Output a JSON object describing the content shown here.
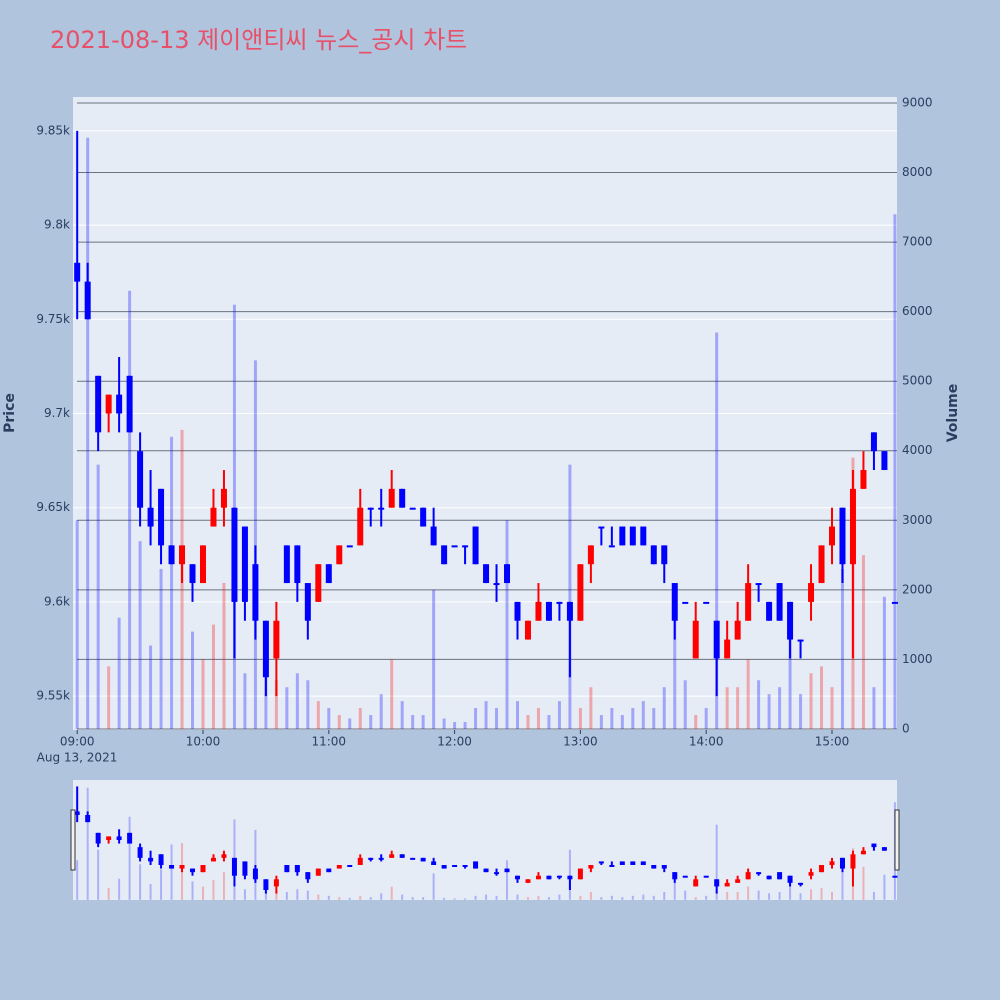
{
  "chart_data": {
    "type": "candlestick",
    "title": "2021-08-13 제이앤티씨 뉴스_공시 차트",
    "y_label": "Price",
    "y2_label": "Volume",
    "x_date_label": "Aug 13, 2021",
    "increasing_color": "#ff0000",
    "decreasing_color": "#0000ff",
    "grid": true,
    "rangeslider": true,
    "xlim": [
      "08:58",
      "15:31"
    ],
    "xticks": [
      "09:00",
      "10:00",
      "11:00",
      "12:00",
      "13:00",
      "14:00",
      "15:00"
    ],
    "ylim": [
      9532,
      9868
    ],
    "yticks": [
      {
        "value": 9550,
        "label": "9.55k"
      },
      {
        "value": 9600,
        "label": "9.6k"
      },
      {
        "value": 9650,
        "label": "9.65k"
      },
      {
        "value": 9700,
        "label": "9.7k"
      },
      {
        "value": 9750,
        "label": "9.75k"
      },
      {
        "value": 9800,
        "label": "9.8k"
      },
      {
        "value": 9850,
        "label": "9.85k"
      }
    ],
    "y2lim": [
      -15,
      9086
    ],
    "y2ticks": [
      0,
      1000,
      2000,
      3000,
      4000,
      5000,
      6000,
      7000,
      8000,
      9000
    ],
    "x": [
      "09:00",
      "09:05",
      "09:10",
      "09:15",
      "09:20",
      "09:25",
      "09:30",
      "09:35",
      "09:40",
      "09:45",
      "09:50",
      "09:55",
      "10:00",
      "10:05",
      "10:10",
      "10:15",
      "10:20",
      "10:25",
      "10:30",
      "10:35",
      "10:40",
      "10:45",
      "10:50",
      "10:55",
      "11:00",
      "11:05",
      "11:10",
      "11:15",
      "11:20",
      "11:25",
      "11:30",
      "11:35",
      "11:40",
      "11:45",
      "11:50",
      "11:55",
      "12:00",
      "12:05",
      "12:10",
      "12:15",
      "12:20",
      "12:25",
      "12:30",
      "12:35",
      "12:40",
      "12:45",
      "12:50",
      "12:55",
      "13:00",
      "13:05",
      "13:10",
      "13:15",
      "13:20",
      "13:25",
      "13:30",
      "13:35",
      "13:40",
      "13:45",
      "13:50",
      "13:55",
      "14:00",
      "14:05",
      "14:10",
      "14:15",
      "14:20",
      "14:25",
      "14:30",
      "14:35",
      "14:40",
      "14:45",
      "14:50",
      "14:55",
      "15:00",
      "15:05",
      "15:10",
      "15:15",
      "15:20",
      "15:25",
      "15:30"
    ],
    "open": [
      9780,
      9770,
      9720,
      9700,
      9710,
      9720,
      9680,
      9650,
      9660,
      9630,
      9620,
      9620,
      9610,
      9640,
      9650,
      9650,
      9640,
      9620,
      9590,
      9570,
      9630,
      9630,
      9610,
      9600,
      9620,
      9620,
      9630,
      9630,
      9650,
      9650,
      9650,
      9660,
      9650,
      9650,
      9640,
      9630,
      9630,
      9630,
      9640,
      9620,
      9610,
      9620,
      9600,
      9580,
      9590,
      9600,
      9600,
      9600,
      9590,
      9620,
      9640,
      9630,
      9640,
      9640,
      9640,
      9630,
      9630,
      9610,
      9600,
      9570,
      9600,
      9590,
      9570,
      9580,
      9590,
      9610,
      9600,
      9610,
      9600,
      9580,
      9600,
      9610,
      9630,
      9650,
      9620,
      9660,
      9690,
      9680,
      9600
    ],
    "high": [
      9850,
      9780,
      9720,
      9710,
      9730,
      9720,
      9690,
      9670,
      9660,
      9630,
      9630,
      9620,
      9630,
      9660,
      9670,
      9650,
      9640,
      9630,
      9590,
      9600,
      9630,
      9630,
      9610,
      9620,
      9620,
      9630,
      9630,
      9660,
      9650,
      9660,
      9670,
      9660,
      9650,
      9650,
      9650,
      9630,
      9630,
      9630,
      9640,
      9620,
      9620,
      9620,
      9600,
      9590,
      9610,
      9600,
      9600,
      9600,
      9620,
      9630,
      9640,
      9640,
      9640,
      9640,
      9640,
      9630,
      9630,
      9610,
      9600,
      9600,
      9600,
      9590,
      9590,
      9600,
      9620,
      9610,
      9600,
      9610,
      9600,
      9580,
      9620,
      9630,
      9650,
      9650,
      9670,
      9680,
      9690,
      9680,
      9600
    ],
    "low": [
      9750,
      9750,
      9680,
      9690,
      9690,
      9690,
      9640,
      9630,
      9620,
      9620,
      9610,
      9600,
      9610,
      9640,
      9640,
      9570,
      9590,
      9580,
      9550,
      9550,
      9610,
      9600,
      9580,
      9600,
      9610,
      9620,
      9630,
      9630,
      9640,
      9640,
      9650,
      9650,
      9650,
      9640,
      9630,
      9620,
      9630,
      9620,
      9620,
      9610,
      9600,
      9610,
      9580,
      9580,
      9590,
      9590,
      9590,
      9560,
      9590,
      9610,
      9630,
      9630,
      9630,
      9630,
      9630,
      9620,
      9610,
      9580,
      9600,
      9570,
      9600,
      9550,
      9570,
      9580,
      9590,
      9600,
      9590,
      9590,
      9570,
      9570,
      9590,
      9610,
      9620,
      9610,
      9570,
      9660,
      9670,
      9670,
      9600
    ],
    "close": [
      9770,
      9750,
      9690,
      9710,
      9700,
      9690,
      9650,
      9640,
      9630,
      9620,
      9630,
      9610,
      9630,
      9650,
      9660,
      9600,
      9600,
      9590,
      9560,
      9590,
      9610,
      9610,
      9590,
      9620,
      9610,
      9630,
      9630,
      9650,
      9650,
      9650,
      9660,
      9650,
      9650,
      9640,
      9630,
      9620,
      9630,
      9630,
      9620,
      9610,
      9610,
      9610,
      9590,
      9590,
      9600,
      9590,
      9600,
      9590,
      9620,
      9630,
      9640,
      9630,
      9630,
      9630,
      9630,
      9620,
      9620,
      9590,
      9600,
      9590,
      9600,
      9570,
      9580,
      9590,
      9610,
      9610,
      9590,
      9590,
      9580,
      9580,
      9610,
      9630,
      9640,
      9620,
      9660,
      9670,
      9680,
      9670,
      9600
    ],
    "volume": [
      3000,
      8500,
      3800,
      900,
      1600,
      6300,
      2700,
      1200,
      2300,
      4200,
      4300,
      1400,
      1000,
      1500,
      2100,
      6100,
      800,
      5300,
      1200,
      700,
      600,
      800,
      700,
      400,
      300,
      200,
      150,
      300,
      200,
      500,
      1000,
      400,
      200,
      200,
      2000,
      150,
      100,
      100,
      300,
      400,
      300,
      3000,
      400,
      200,
      300,
      200,
      400,
      3800,
      300,
      600,
      200,
      300,
      200,
      300,
      400,
      300,
      600,
      2000,
      700,
      200,
      300,
      5700,
      600,
      600,
      1000,
      700,
      500,
      600,
      1500,
      500,
      800,
      900,
      600,
      2300,
      3900,
      2500,
      600,
      1900,
      7400
    ]
  }
}
